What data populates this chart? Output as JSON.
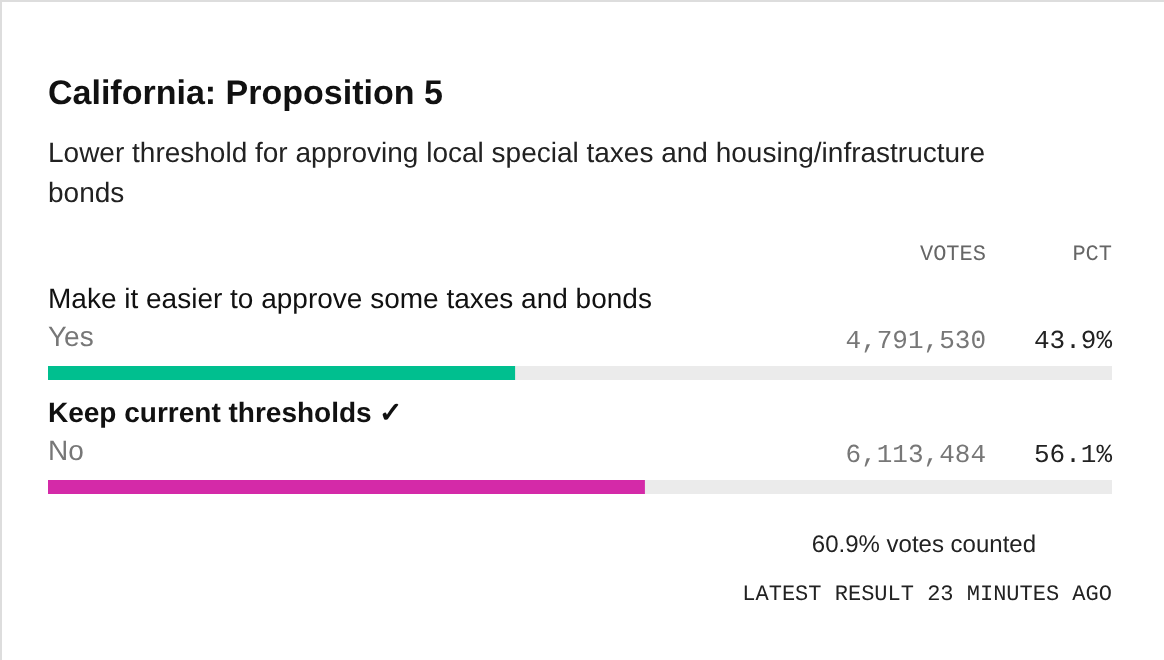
{
  "chart_data": {
    "type": "bar",
    "orientation": "horizontal",
    "title": "California: Proposition 5",
    "subtitle": "Lower threshold for approving local special taxes and housing/infrastructure bonds",
    "categories": [
      "Yes",
      "No"
    ],
    "values": [
      43.9,
      56.1
    ],
    "colors": [
      "#00bf8f",
      "#d42aa8"
    ],
    "xlim": [
      0,
      100
    ],
    "value_labels": [
      "43.9%",
      "56.1%"
    ],
    "annotations": [
      "VOTES",
      "PCT",
      "Make it easier to approve some taxes and bonds",
      "4,791,530",
      "Keep current thresholds ✓",
      "6,113,484",
      "60.9% votes counted",
      "LATEST RESULT 23 MINUTES AGO"
    ]
  }
}
